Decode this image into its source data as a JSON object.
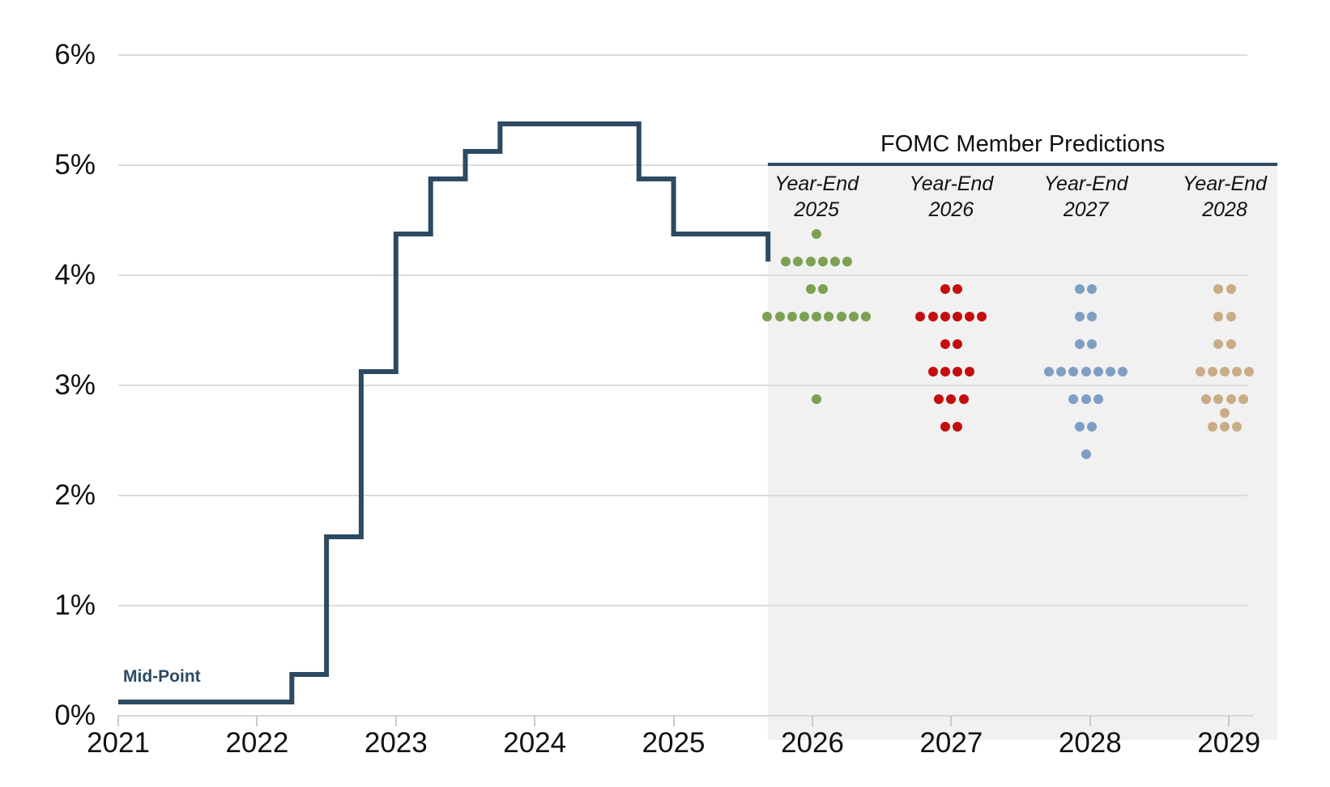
{
  "chart_data": {
    "type": "line+dot-plot",
    "header": {
      "title": "FOMC Member Predictions"
    },
    "colors": {
      "line": "#2c4a62",
      "grid": "#dcdcdc",
      "axis": "#d6d6d6",
      "tick": "#c9c9c9",
      "shade": "#f1f1f1",
      "text": "#111111"
    },
    "y_axis": {
      "tick_labels": [
        "0%",
        "1%",
        "2%",
        "3%",
        "4%",
        "5%",
        "6%"
      ],
      "tick_values": [
        0,
        1,
        2,
        3,
        4,
        5,
        6
      ],
      "range": [
        0,
        6
      ]
    },
    "x_axis": {
      "tick_labels": [
        "2021",
        "2022",
        "2023",
        "2024",
        "2025",
        "2026",
        "2027",
        "2028",
        "2029"
      ],
      "tick_values": [
        2021,
        2022,
        2023,
        2024,
        2025,
        2026,
        2027,
        2028,
        2029
      ]
    },
    "line_series": {
      "label": "Mid-Point",
      "color": "#2c4a62",
      "step_points": [
        [
          2021.0,
          0.125
        ],
        [
          2022.25,
          0.375
        ],
        [
          2022.5,
          1.625
        ],
        [
          2022.75,
          3.125
        ],
        [
          2023.0,
          4.375
        ],
        [
          2023.25,
          4.875
        ],
        [
          2023.5,
          5.125
        ],
        [
          2023.75,
          5.375
        ],
        [
          2024.75,
          4.875
        ],
        [
          2025.0,
          4.375
        ],
        [
          2025.68,
          4.125
        ]
      ]
    },
    "forecast_region": {
      "x_start": 2025.68,
      "x_end": 2029.35
    },
    "dot_columns": [
      {
        "header_line1": "Year-End",
        "header_line2": "2025",
        "x_year": 2026.03,
        "color": "#7ca151",
        "rows": [
          {
            "value": 4.375,
            "count": 1
          },
          {
            "value": 4.125,
            "count": 6
          },
          {
            "value": 3.875,
            "count": 2
          },
          {
            "value": 3.625,
            "count": 9
          },
          {
            "value": 2.875,
            "count": 1
          }
        ]
      },
      {
        "header_line1": "Year-End",
        "header_line2": "2026",
        "x_year": 2027.0,
        "color": "#c40e0e",
        "rows": [
          {
            "value": 3.875,
            "count": 2
          },
          {
            "value": 3.625,
            "count": 6
          },
          {
            "value": 3.375,
            "count": 2
          },
          {
            "value": 3.125,
            "count": 4
          },
          {
            "value": 2.875,
            "count": 3
          },
          {
            "value": 2.625,
            "count": 2
          }
        ]
      },
      {
        "header_line1": "Year-End",
        "header_line2": "2027",
        "x_year": 2027.97,
        "color": "#7f9ec3",
        "rows": [
          {
            "value": 3.875,
            "count": 2
          },
          {
            "value": 3.625,
            "count": 2
          },
          {
            "value": 3.375,
            "count": 2
          },
          {
            "value": 3.125,
            "count": 7
          },
          {
            "value": 2.875,
            "count": 3
          },
          {
            "value": 2.625,
            "count": 2
          },
          {
            "value": 2.375,
            "count": 1
          }
        ]
      },
      {
        "header_line1": "Year-End",
        "header_line2": "2028",
        "x_year": 2028.97,
        "color": "#c9ac87",
        "rows": [
          {
            "value": 3.875,
            "count": 2
          },
          {
            "value": 3.625,
            "count": 2
          },
          {
            "value": 3.375,
            "count": 2
          },
          {
            "value": 3.125,
            "count": 5
          },
          {
            "value": 2.875,
            "count": 4
          },
          {
            "value": 2.75,
            "count": 1
          },
          {
            "value": 2.625,
            "count": 3
          }
        ]
      }
    ]
  }
}
